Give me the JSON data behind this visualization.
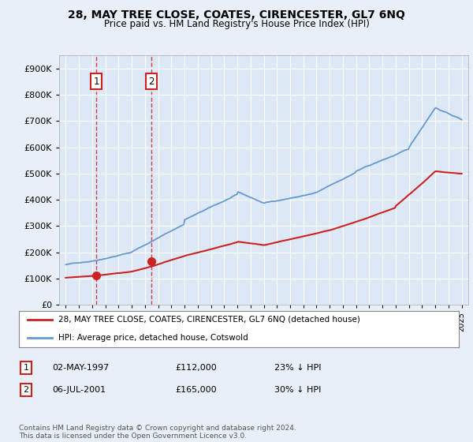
{
  "title": "28, MAY TREE CLOSE, COATES, CIRENCESTER, GL7 6NQ",
  "subtitle": "Price paid vs. HM Land Registry's House Price Index (HPI)",
  "background_color": "#e8eff8",
  "plot_bg_color": "#dce8f5",
  "grid_color": "#ffffff",
  "sale1_date": 1997.33,
  "sale1_price": 112000,
  "sale2_date": 2001.51,
  "sale2_price": 165000,
  "legend_line1": "28, MAY TREE CLOSE, COATES, CIRENCESTER, GL7 6NQ (detached house)",
  "legend_line2": "HPI: Average price, detached house, Cotswold",
  "table_row1": [
    "1",
    "02-MAY-1997",
    "£112,000",
    "23% ↓ HPI"
  ],
  "table_row2": [
    "2",
    "06-JUL-2001",
    "£165,000",
    "30% ↓ HPI"
  ],
  "footnote": "Contains HM Land Registry data © Crown copyright and database right 2024.\nThis data is licensed under the Open Government Licence v3.0.",
  "ylim_max": 950000,
  "xlim_min": 1994.5,
  "xlim_max": 2025.5,
  "red_color": "#cc2222",
  "blue_color": "#6699cc"
}
